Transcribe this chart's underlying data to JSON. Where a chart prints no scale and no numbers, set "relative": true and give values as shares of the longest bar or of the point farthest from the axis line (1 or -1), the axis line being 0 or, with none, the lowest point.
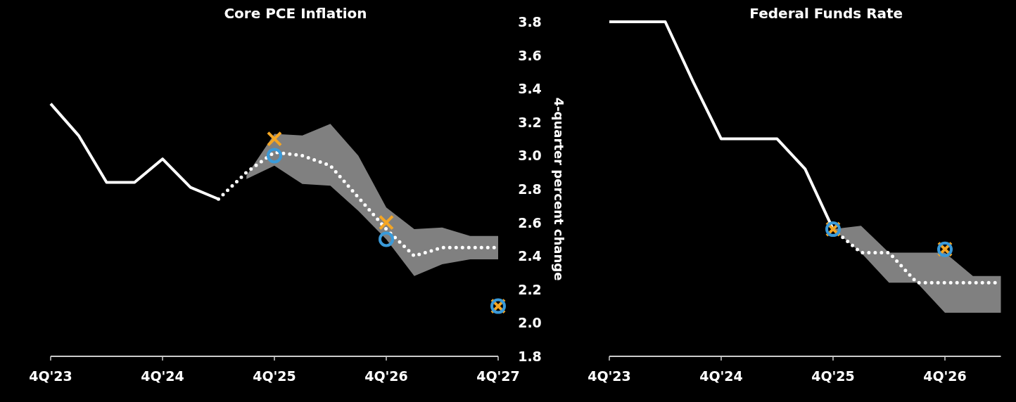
{
  "chart_data": [
    {
      "type": "line",
      "title": "Core PCE Inflation",
      "ylabel": "4-quarter percent change",
      "categories": [
        "4Q'23",
        null,
        null,
        null,
        "4Q'24",
        null,
        null,
        null,
        "4Q'25",
        null,
        null,
        null,
        "4Q'26",
        null,
        null,
        null,
        "4Q'27"
      ],
      "ylim": [
        1.8,
        3.8
      ],
      "yticks": [
        {
          "value": 1.8,
          "label": "1.8"
        },
        {
          "value": 2.0,
          "label": "2.0"
        },
        {
          "value": 2.2,
          "label": "2.2"
        },
        {
          "value": 2.4,
          "label": "2.4"
        },
        {
          "value": 2.6,
          "label": "2.6"
        },
        {
          "value": 2.8,
          "label": "2.8"
        },
        {
          "value": 3.0,
          "label": "3.0"
        },
        {
          "value": 3.2,
          "label": "3.2"
        },
        {
          "value": 3.4,
          "label": "3.4"
        },
        {
          "value": 3.6,
          "label": "3.6"
        },
        {
          "value": 3.8,
          "label": "3.8"
        }
      ],
      "series": [
        {
          "color": "#ffffff",
          "line_style": "solid",
          "values": [
            3.31,
            3.12,
            2.84,
            2.84,
            2.98,
            2.81,
            2.74,
            null,
            null,
            null,
            null,
            null,
            null,
            null,
            null,
            null,
            null
          ]
        },
        {
          "color": "#ffffff",
          "line_style": "dotted",
          "values": [
            null,
            null,
            null,
            null,
            null,
            null,
            2.74,
            2.9,
            3.02,
            3.0,
            2.94,
            2.75,
            2.56,
            2.4,
            2.45,
            2.45,
            2.45
          ],
          "lower": [
            null,
            null,
            null,
            null,
            null,
            null,
            null,
            2.86,
            2.94,
            2.83,
            2.82,
            2.67,
            2.5,
            2.28,
            2.35,
            2.38,
            2.38
          ],
          "upper": [
            null,
            null,
            null,
            null,
            null,
            null,
            null,
            2.88,
            3.13,
            3.12,
            3.19,
            3.0,
            2.69,
            2.56,
            2.57,
            2.52,
            2.52
          ]
        },
        {
          "type": "scatter",
          "color": "#f5a623",
          "marker": "cross",
          "values": [
            null,
            null,
            null,
            null,
            null,
            null,
            null,
            null,
            3.1,
            null,
            null,
            null,
            2.6,
            null,
            null,
            null,
            2.1
          ]
        },
        {
          "type": "scatter",
          "color": "#3a9ad9",
          "marker": "circle",
          "values": [
            null,
            null,
            null,
            null,
            null,
            null,
            null,
            null,
            3.0,
            null,
            null,
            null,
            2.5,
            null,
            null,
            null,
            2.1
          ]
        }
      ]
    },
    {
      "type": "line",
      "title": "Federal Funds Rate",
      "relative": true,
      "categories": [
        "4Q'23",
        null,
        null,
        null,
        "4Q'24",
        null,
        null,
        null,
        "4Q'25",
        null,
        null,
        null,
        "4Q'26",
        null,
        null
      ],
      "series": [
        {
          "color": "#ffffff",
          "line_style": "solid",
          "values": [
            1,
            1,
            1,
            0.82,
            0.65,
            0.65,
            0.65,
            0.56,
            0.38,
            null,
            null,
            null,
            null,
            null,
            null
          ]
        },
        {
          "color": "#ffffff",
          "line_style": "dotted",
          "values": [
            null,
            null,
            null,
            null,
            null,
            null,
            null,
            null,
            0.38,
            0.31,
            0.31,
            0.22,
            0.22,
            0.22,
            0.22
          ],
          "lower": [
            null,
            null,
            null,
            null,
            null,
            null,
            null,
            null,
            0.38,
            0.31,
            0.22,
            0.22,
            0.13,
            0.13,
            0.13
          ],
          "upper": [
            null,
            null,
            null,
            null,
            null,
            null,
            null,
            null,
            0.38,
            0.39,
            0.31,
            0.31,
            0.31,
            0.24,
            0.24
          ]
        },
        {
          "type": "scatter",
          "color": "#f5a623",
          "marker": "cross",
          "values": [
            null,
            null,
            null,
            null,
            null,
            null,
            null,
            null,
            0.38,
            null,
            null,
            null,
            0.32,
            null,
            null
          ]
        },
        {
          "type": "scatter",
          "color": "#3a9ad9",
          "marker": "circle",
          "values": [
            null,
            null,
            null,
            null,
            null,
            null,
            null,
            null,
            0.38,
            null,
            null,
            null,
            0.32,
            null,
            null
          ]
        }
      ]
    }
  ]
}
